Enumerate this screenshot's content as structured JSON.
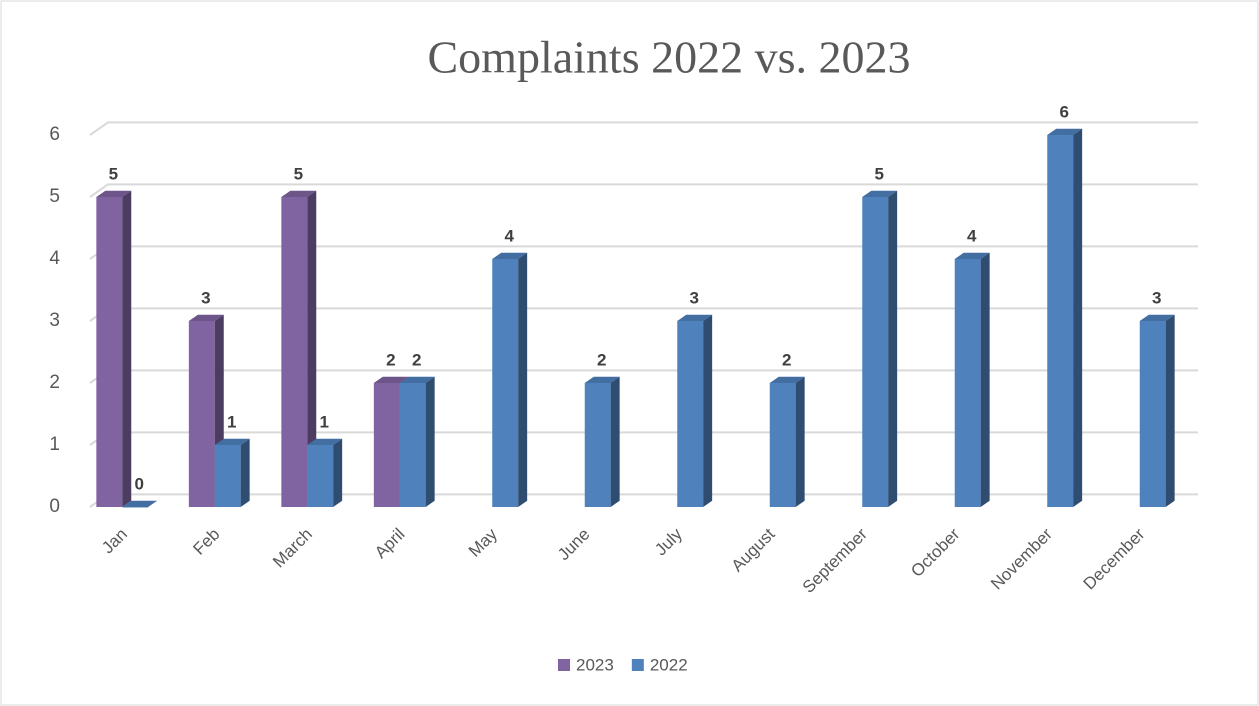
{
  "chart_data": {
    "type": "bar3d",
    "title": "Complaints 2022 vs. 2023",
    "categories": [
      "Jan",
      "Feb",
      "March",
      "April",
      "May",
      "June",
      "July",
      "August",
      "September",
      "October",
      "November",
      "December"
    ],
    "series": [
      {
        "name": "2023",
        "color": "#8064a2",
        "values": [
          5,
          3,
          5,
          2,
          null,
          null,
          null,
          null,
          null,
          null,
          null,
          null
        ]
      },
      {
        "name": "2022",
        "color": "#4f81bd",
        "values": [
          0,
          1,
          1,
          2,
          4,
          2,
          3,
          2,
          5,
          4,
          6,
          3
        ]
      }
    ],
    "ylim": [
      0,
      6
    ],
    "yticks": [
      0,
      1,
      2,
      3,
      4,
      5,
      6
    ],
    "grid": true,
    "legend": "bottom"
  }
}
